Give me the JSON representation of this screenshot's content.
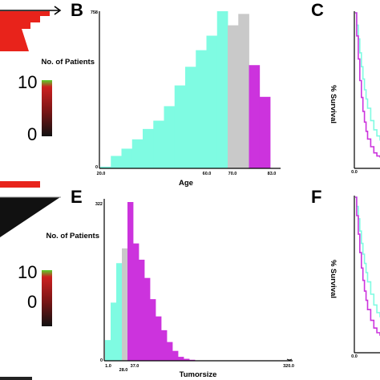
{
  "panels": {
    "B": "B",
    "C": "C",
    "E": "E",
    "F": "F"
  },
  "scales": [
    {
      "max_label": "10",
      "min_label": "0"
    },
    {
      "max_label": "10",
      "min_label": "0"
    }
  ],
  "colors": {
    "heatmap_red": "#e8231b",
    "low_group": "#7ffbe2",
    "mid_group": "#c9c9c9",
    "high_group": "#cc33dd",
    "survival_low": "#7ffbe2",
    "survival_high": "#cc33dd",
    "scale_top_green": "#58d02a",
    "scale_red": "#cc2020",
    "scale_bottom": "#111111"
  },
  "chart_data": [
    {
      "id": "B",
      "type": "bar",
      "title": "",
      "xlabel": "Age",
      "ylabel": "No. of Patients",
      "x_tick_labels": [
        "20.0",
        "60.0",
        "70.0",
        "83.0"
      ],
      "y_tick_labels": [
        "0",
        "758"
      ],
      "x_range": [
        20,
        85
      ],
      "ylim": [
        0,
        758
      ],
      "bin_edges": [
        20,
        24,
        28,
        32,
        36,
        40,
        44,
        48,
        52,
        56,
        60,
        64,
        68,
        72,
        76,
        80,
        84
      ],
      "values": [
        8,
        60,
        95,
        140,
        190,
        230,
        300,
        400,
        490,
        570,
        640,
        758,
        690,
        745,
        498,
        345
      ],
      "groups": [
        "low",
        "low",
        "low",
        "low",
        "low",
        "low",
        "low",
        "low",
        "low",
        "low",
        "low",
        "low",
        "mid",
        "mid",
        "high",
        "high"
      ]
    },
    {
      "id": "E",
      "type": "bar",
      "title": "",
      "xlabel": "Tumorsize",
      "ylabel": "No. of Patients",
      "x_tick_labels": [
        "1.0",
        "28.0",
        "37.0",
        "320.0"
      ],
      "y_tick_labels": [
        "0",
        "322"
      ],
      "x_range": [
        1,
        320
      ],
      "ylim": [
        0,
        322
      ],
      "bin_edges": [
        1,
        8,
        15,
        22,
        29,
        36,
        43,
        50,
        57,
        64,
        71,
        78,
        85,
        92,
        99,
        106,
        113
      ],
      "values": [
        42,
        118,
        198,
        228,
        322,
        238,
        205,
        168,
        125,
        90,
        62,
        38,
        20,
        8,
        4,
        2
      ],
      "groups": [
        "low",
        "low",
        "low",
        "mid",
        "high",
        "high",
        "high",
        "high",
        "high",
        "high",
        "high",
        "high",
        "high",
        "high",
        "high",
        "high"
      ]
    },
    {
      "id": "C",
      "type": "line",
      "title": "",
      "xlabel": "",
      "ylabel": "% Survival",
      "x_tick_labels": [
        "0.0"
      ],
      "ylim": [
        0,
        100
      ],
      "series": [
        {
          "group": "low",
          "x": [
            0,
            1,
            2,
            3,
            4,
            5,
            6,
            7,
            8,
            10,
            12,
            14,
            16
          ],
          "y": [
            100,
            92,
            83,
            74,
            65,
            57,
            50,
            44,
            38,
            30,
            24,
            20,
            17
          ]
        },
        {
          "group": "high",
          "x": [
            0,
            1,
            2,
            3,
            4,
            5,
            6,
            7,
            8,
            10,
            12,
            14,
            16
          ],
          "y": [
            100,
            85,
            70,
            56,
            45,
            36,
            29,
            23,
            18,
            13,
            9,
            7,
            6
          ]
        }
      ]
    },
    {
      "id": "F",
      "type": "line",
      "title": "",
      "xlabel": "",
      "ylabel": "% Survival",
      "x_tick_labels": [
        "0.0"
      ],
      "ylim": [
        0,
        100
      ],
      "series": [
        {
          "group": "low",
          "x": [
            0,
            1,
            2,
            3,
            4,
            5,
            6,
            7,
            8,
            10,
            12,
            14,
            16
          ],
          "y": [
            100,
            94,
            86,
            78,
            70,
            63,
            57,
            51,
            45,
            37,
            30,
            25,
            22
          ]
        },
        {
          "group": "high",
          "x": [
            0,
            1,
            2,
            3,
            4,
            5,
            6,
            7,
            8,
            10,
            12,
            14,
            16
          ],
          "y": [
            100,
            88,
            76,
            64,
            54,
            46,
            39,
            33,
            27,
            20,
            15,
            12,
            10
          ]
        }
      ]
    }
  ]
}
